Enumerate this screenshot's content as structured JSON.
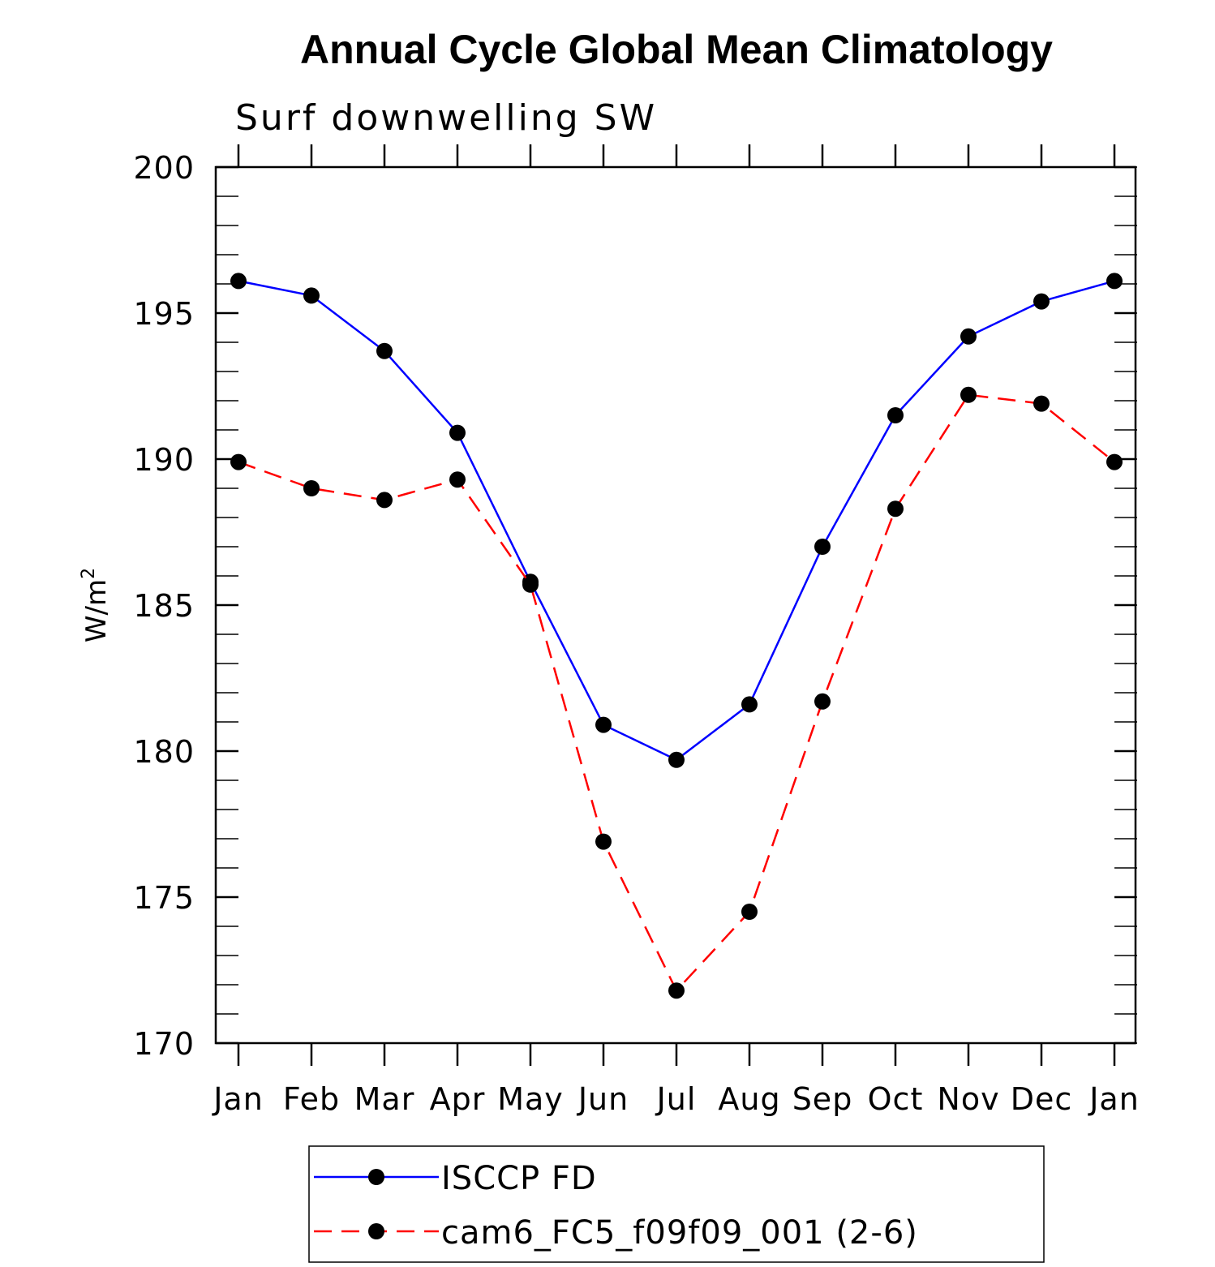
{
  "chart_data": {
    "type": "line",
    "title": "Annual Cycle Global Mean Climatology",
    "subtitle": "Surf downwelling SW",
    "xlabel": "",
    "ylabel": "W/m",
    "ylabel_superscript": "2",
    "categories": [
      "Jan",
      "Feb",
      "Mar",
      "Apr",
      "May",
      "Jun",
      "Jul",
      "Aug",
      "Sep",
      "Oct",
      "Nov",
      "Dec",
      "Jan"
    ],
    "ylim": [
      170,
      200
    ],
    "yticks": [
      "170",
      "175",
      "180",
      "185",
      "190",
      "195",
      "200"
    ],
    "y_minor_step": 1,
    "grid": false,
    "legend_position": "bottom",
    "series": [
      {
        "name": "ISCCP FD",
        "color": "#0000ff",
        "dash": "solid",
        "marker": "filled-circle",
        "values": [
          196.1,
          195.6,
          193.7,
          190.9,
          185.8,
          180.9,
          179.7,
          181.6,
          187.0,
          191.5,
          194.2,
          195.4,
          196.1
        ]
      },
      {
        "name": "cam6_FC5_f09f09_001 (2-6)",
        "color": "#ff0000",
        "dash": "dashed",
        "marker": "filled-circle",
        "values": [
          189.9,
          189.0,
          188.6,
          189.3,
          185.7,
          176.9,
          171.8,
          174.5,
          181.7,
          188.3,
          192.2,
          191.9,
          189.9
        ]
      }
    ]
  }
}
